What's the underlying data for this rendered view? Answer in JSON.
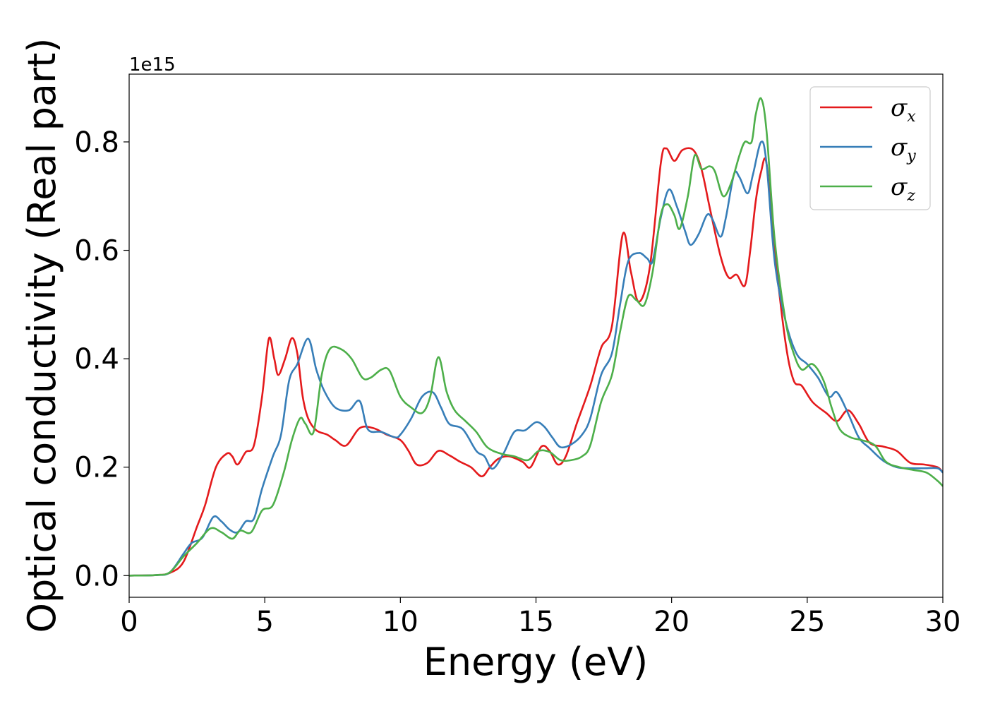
{
  "chart_data": {
    "type": "line",
    "title": "",
    "xlabel": "Energy (eV)",
    "ylabel": "Optical conductivity (Real part)",
    "y_offset_label": "1e15",
    "xlim": [
      0,
      30
    ],
    "ylim": [
      -0.04,
      0.925
    ],
    "x_ticks": [
      0,
      5,
      10,
      15,
      20,
      25,
      30
    ],
    "x_tick_labels": [
      "0",
      "5",
      "10",
      "15",
      "20",
      "25",
      "30"
    ],
    "y_ticks": [
      0.0,
      0.2,
      0.4,
      0.6,
      0.8
    ],
    "y_tick_labels": [
      "0.0",
      "0.2",
      "0.4",
      "0.6",
      "0.8"
    ],
    "grid": false,
    "legend_position": "top-right",
    "series": [
      {
        "name": "σx",
        "symbol": "σ",
        "subscript": "x",
        "color": "#e41a1c",
        "points": [
          [
            0,
            0
          ],
          [
            1,
            0.001
          ],
          [
            1.5,
            0.005
          ],
          [
            2,
            0.025
          ],
          [
            2.5,
            0.09
          ],
          [
            2.8,
            0.13
          ],
          [
            3.2,
            0.2
          ],
          [
            3.6,
            0.225
          ],
          [
            3.8,
            0.22
          ],
          [
            4,
            0.205
          ],
          [
            4.3,
            0.228
          ],
          [
            4.6,
            0.24
          ],
          [
            4.9,
            0.33
          ],
          [
            5.15,
            0.437
          ],
          [
            5.35,
            0.4
          ],
          [
            5.5,
            0.37
          ],
          [
            5.75,
            0.4
          ],
          [
            6,
            0.438
          ],
          [
            6.2,
            0.41
          ],
          [
            6.4,
            0.33
          ],
          [
            6.6,
            0.29
          ],
          [
            6.9,
            0.268
          ],
          [
            7.3,
            0.26
          ],
          [
            7.6,
            0.25
          ],
          [
            8,
            0.24
          ],
          [
            8.5,
            0.272
          ],
          [
            9,
            0.272
          ],
          [
            9.5,
            0.26
          ],
          [
            10,
            0.25
          ],
          [
            10.3,
            0.23
          ],
          [
            10.6,
            0.205
          ],
          [
            11,
            0.208
          ],
          [
            11.4,
            0.23
          ],
          [
            11.8,
            0.222
          ],
          [
            12.2,
            0.21
          ],
          [
            12.6,
            0.2
          ],
          [
            13,
            0.183
          ],
          [
            13.3,
            0.2
          ],
          [
            13.6,
            0.215
          ],
          [
            14,
            0.22
          ],
          [
            14.5,
            0.21
          ],
          [
            14.8,
            0.2
          ],
          [
            15.2,
            0.238
          ],
          [
            15.5,
            0.23
          ],
          [
            15.8,
            0.205
          ],
          [
            16.1,
            0.22
          ],
          [
            16.5,
            0.28
          ],
          [
            17,
            0.35
          ],
          [
            17.4,
            0.42
          ],
          [
            17.8,
            0.46
          ],
          [
            18.2,
            0.63
          ],
          [
            18.5,
            0.56
          ],
          [
            18.8,
            0.505
          ],
          [
            19.2,
            0.57
          ],
          [
            19.6,
            0.76
          ],
          [
            19.8,
            0.788
          ],
          [
            20.1,
            0.765
          ],
          [
            20.4,
            0.785
          ],
          [
            20.8,
            0.785
          ],
          [
            21.1,
            0.75
          ],
          [
            21.4,
            0.68
          ],
          [
            21.8,
            0.59
          ],
          [
            22.1,
            0.55
          ],
          [
            22.4,
            0.555
          ],
          [
            22.7,
            0.535
          ],
          [
            22.9,
            0.6
          ],
          [
            23.1,
            0.69
          ],
          [
            23.3,
            0.745
          ],
          [
            23.5,
            0.76
          ],
          [
            23.8,
            0.6
          ],
          [
            24.2,
            0.43
          ],
          [
            24.5,
            0.36
          ],
          [
            24.8,
            0.35
          ],
          [
            25.2,
            0.32
          ],
          [
            25.7,
            0.3
          ],
          [
            26.1,
            0.285
          ],
          [
            26.5,
            0.305
          ],
          [
            26.9,
            0.28
          ],
          [
            27.3,
            0.245
          ],
          [
            27.8,
            0.238
          ],
          [
            28.3,
            0.23
          ],
          [
            28.8,
            0.208
          ],
          [
            29.3,
            0.205
          ],
          [
            29.8,
            0.2
          ],
          [
            30,
            0.19
          ]
        ]
      },
      {
        "name": "σy",
        "symbol": "σ",
        "subscript": "y",
        "color": "#377eb8",
        "points": [
          [
            0,
            0
          ],
          [
            1,
            0.001
          ],
          [
            1.5,
            0.006
          ],
          [
            2,
            0.04
          ],
          [
            2.3,
            0.06
          ],
          [
            2.7,
            0.07
          ],
          [
            3.1,
            0.108
          ],
          [
            3.4,
            0.1
          ],
          [
            3.7,
            0.085
          ],
          [
            4,
            0.08
          ],
          [
            4.3,
            0.1
          ],
          [
            4.6,
            0.105
          ],
          [
            4.9,
            0.16
          ],
          [
            5.3,
            0.22
          ],
          [
            5.6,
            0.26
          ],
          [
            5.9,
            0.36
          ],
          [
            6.2,
            0.39
          ],
          [
            6.6,
            0.437
          ],
          [
            6.9,
            0.38
          ],
          [
            7.2,
            0.34
          ],
          [
            7.6,
            0.31
          ],
          [
            8.1,
            0.305
          ],
          [
            8.5,
            0.322
          ],
          [
            8.8,
            0.27
          ],
          [
            9.3,
            0.265
          ],
          [
            9.8,
            0.255
          ],
          [
            10,
            0.26
          ],
          [
            10.4,
            0.29
          ],
          [
            10.8,
            0.33
          ],
          [
            11.2,
            0.338
          ],
          [
            11.5,
            0.31
          ],
          [
            11.8,
            0.28
          ],
          [
            12.3,
            0.27
          ],
          [
            12.8,
            0.23
          ],
          [
            13.1,
            0.22
          ],
          [
            13.4,
            0.197
          ],
          [
            13.8,
            0.225
          ],
          [
            14.2,
            0.265
          ],
          [
            14.6,
            0.268
          ],
          [
            15,
            0.283
          ],
          [
            15.3,
            0.275
          ],
          [
            15.6,
            0.255
          ],
          [
            15.9,
            0.237
          ],
          [
            16.3,
            0.242
          ],
          [
            16.7,
            0.26
          ],
          [
            17,
            0.29
          ],
          [
            17.4,
            0.37
          ],
          [
            17.8,
            0.41
          ],
          [
            18.1,
            0.5
          ],
          [
            18.4,
            0.58
          ],
          [
            18.8,
            0.595
          ],
          [
            19.1,
            0.585
          ],
          [
            19.3,
            0.58
          ],
          [
            19.6,
            0.66
          ],
          [
            19.9,
            0.712
          ],
          [
            20.2,
            0.68
          ],
          [
            20.5,
            0.635
          ],
          [
            20.7,
            0.61
          ],
          [
            21,
            0.63
          ],
          [
            21.3,
            0.665
          ],
          [
            21.5,
            0.658
          ],
          [
            21.8,
            0.625
          ],
          [
            22,
            0.66
          ],
          [
            22.3,
            0.74
          ],
          [
            22.5,
            0.735
          ],
          [
            22.8,
            0.705
          ],
          [
            23,
            0.74
          ],
          [
            23.3,
            0.8
          ],
          [
            23.5,
            0.76
          ],
          [
            23.8,
            0.58
          ],
          [
            24.2,
            0.47
          ],
          [
            24.6,
            0.41
          ],
          [
            25,
            0.39
          ],
          [
            25.4,
            0.365
          ],
          [
            25.8,
            0.33
          ],
          [
            26.1,
            0.338
          ],
          [
            26.5,
            0.3
          ],
          [
            26.9,
            0.255
          ],
          [
            27.3,
            0.235
          ],
          [
            27.8,
            0.212
          ],
          [
            28.3,
            0.2
          ],
          [
            28.8,
            0.198
          ],
          [
            29.3,
            0.198
          ],
          [
            29.8,
            0.198
          ],
          [
            30,
            0.19
          ]
        ]
      },
      {
        "name": "σz",
        "symbol": "σ",
        "subscript": "z",
        "color": "#4daf4a",
        "points": [
          [
            0,
            0
          ],
          [
            1,
            0.001
          ],
          [
            1.5,
            0.006
          ],
          [
            2,
            0.035
          ],
          [
            2.5,
            0.06
          ],
          [
            3,
            0.087
          ],
          [
            3.4,
            0.08
          ],
          [
            3.8,
            0.068
          ],
          [
            4.1,
            0.083
          ],
          [
            4.5,
            0.08
          ],
          [
            4.9,
            0.12
          ],
          [
            5.3,
            0.13
          ],
          [
            5.7,
            0.19
          ],
          [
            6,
            0.25
          ],
          [
            6.3,
            0.29
          ],
          [
            6.5,
            0.28
          ],
          [
            6.8,
            0.265
          ],
          [
            7.1,
            0.37
          ],
          [
            7.4,
            0.418
          ],
          [
            7.8,
            0.418
          ],
          [
            8.2,
            0.4
          ],
          [
            8.6,
            0.365
          ],
          [
            8.9,
            0.365
          ],
          [
            9.3,
            0.38
          ],
          [
            9.6,
            0.378
          ],
          [
            10,
            0.33
          ],
          [
            10.4,
            0.31
          ],
          [
            10.8,
            0.3
          ],
          [
            11.1,
            0.33
          ],
          [
            11.4,
            0.403
          ],
          [
            11.7,
            0.34
          ],
          [
            12,
            0.305
          ],
          [
            12.4,
            0.285
          ],
          [
            12.8,
            0.265
          ],
          [
            13.2,
            0.237
          ],
          [
            13.7,
            0.225
          ],
          [
            14.2,
            0.22
          ],
          [
            14.7,
            0.213
          ],
          [
            15.1,
            0.23
          ],
          [
            15.5,
            0.228
          ],
          [
            15.9,
            0.213
          ],
          [
            16.3,
            0.213
          ],
          [
            16.7,
            0.22
          ],
          [
            17,
            0.24
          ],
          [
            17.4,
            0.32
          ],
          [
            17.8,
            0.37
          ],
          [
            18.1,
            0.45
          ],
          [
            18.4,
            0.515
          ],
          [
            18.7,
            0.508
          ],
          [
            19,
            0.5
          ],
          [
            19.3,
            0.56
          ],
          [
            19.6,
            0.665
          ],
          [
            19.85,
            0.685
          ],
          [
            20.1,
            0.665
          ],
          [
            20.3,
            0.64
          ],
          [
            20.6,
            0.7
          ],
          [
            20.85,
            0.775
          ],
          [
            21.1,
            0.75
          ],
          [
            21.4,
            0.755
          ],
          [
            21.6,
            0.745
          ],
          [
            21.9,
            0.7
          ],
          [
            22.2,
            0.725
          ],
          [
            22.5,
            0.775
          ],
          [
            22.7,
            0.8
          ],
          [
            22.95,
            0.8
          ],
          [
            23.1,
            0.85
          ],
          [
            23.3,
            0.88
          ],
          [
            23.5,
            0.82
          ],
          [
            23.8,
            0.62
          ],
          [
            24.2,
            0.47
          ],
          [
            24.5,
            0.41
          ],
          [
            24.8,
            0.38
          ],
          [
            25.2,
            0.39
          ],
          [
            25.6,
            0.36
          ],
          [
            25.9,
            0.31
          ],
          [
            26.2,
            0.27
          ],
          [
            26.6,
            0.255
          ],
          [
            27,
            0.25
          ],
          [
            27.5,
            0.24
          ],
          [
            27.9,
            0.21
          ],
          [
            28.4,
            0.2
          ],
          [
            28.9,
            0.195
          ],
          [
            29.4,
            0.19
          ],
          [
            29.8,
            0.175
          ],
          [
            30,
            0.165
          ]
        ]
      }
    ]
  }
}
